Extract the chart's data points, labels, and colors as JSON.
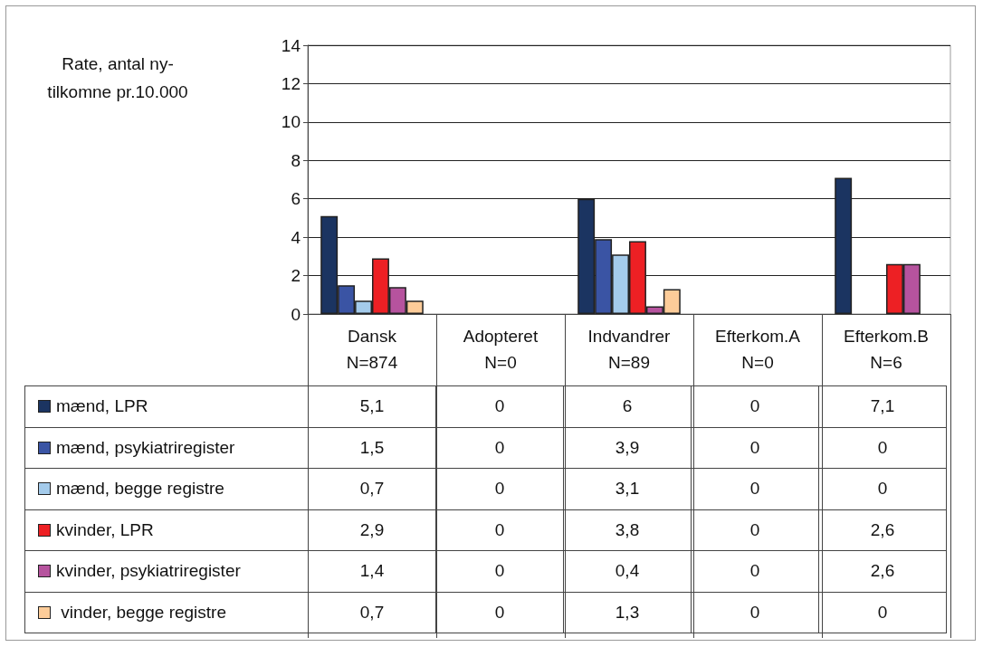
{
  "chart_data": {
    "type": "bar",
    "annotations": [
      "Rate, antal ny-\ntilkomne pr.10.000"
    ],
    "categories": [
      "Dansk\nN=874",
      "Adopteret\nN=0",
      "Indvandrer\nN=89",
      "Efterkom.A\nN=0",
      "Efterkom.B\nN=6"
    ],
    "series": [
      {
        "name": "mænd, LPR",
        "color": "#1b3461",
        "values": [
          5.1,
          0,
          6,
          0,
          7.1
        ],
        "value_labels": [
          "5,1",
          "0",
          "6",
          "0",
          "7,1"
        ]
      },
      {
        "name": "mænd, psykiatriregister",
        "color": "#3a54a4",
        "values": [
          1.5,
          0,
          3.9,
          0,
          0
        ],
        "value_labels": [
          "1,5",
          "0",
          "3,9",
          "0",
          "0"
        ]
      },
      {
        "name": "mænd, begge registre",
        "color": "#a4cbeb",
        "values": [
          0.7,
          0,
          3.1,
          0,
          0
        ],
        "value_labels": [
          "0,7",
          "0",
          "3,1",
          "0",
          "0"
        ]
      },
      {
        "name": "kvinder, LPR",
        "color": "#ed2024",
        "values": [
          2.9,
          0,
          3.8,
          0,
          2.6
        ],
        "value_labels": [
          "2,9",
          "0",
          "3,8",
          "0",
          "2,6"
        ]
      },
      {
        "name": "kvinder, psykiatriregister",
        "color": "#b6539e",
        "values": [
          1.4,
          0,
          0.4,
          0,
          2.6
        ],
        "value_labels": [
          "1,4",
          "0",
          "0,4",
          "0",
          "2,6"
        ]
      },
      {
        "name": " vinder, begge registre",
        "color": "#fdcc99",
        "values": [
          0.7,
          0,
          1.3,
          0,
          0
        ],
        "value_labels": [
          "0,7",
          "0",
          "1,3",
          "0",
          "0"
        ]
      }
    ],
    "ylim": [
      0,
      14
    ],
    "yticks": [
      0,
      2,
      4,
      6,
      8,
      10,
      12,
      14
    ],
    "grid": "y",
    "legend": "bottom"
  }
}
